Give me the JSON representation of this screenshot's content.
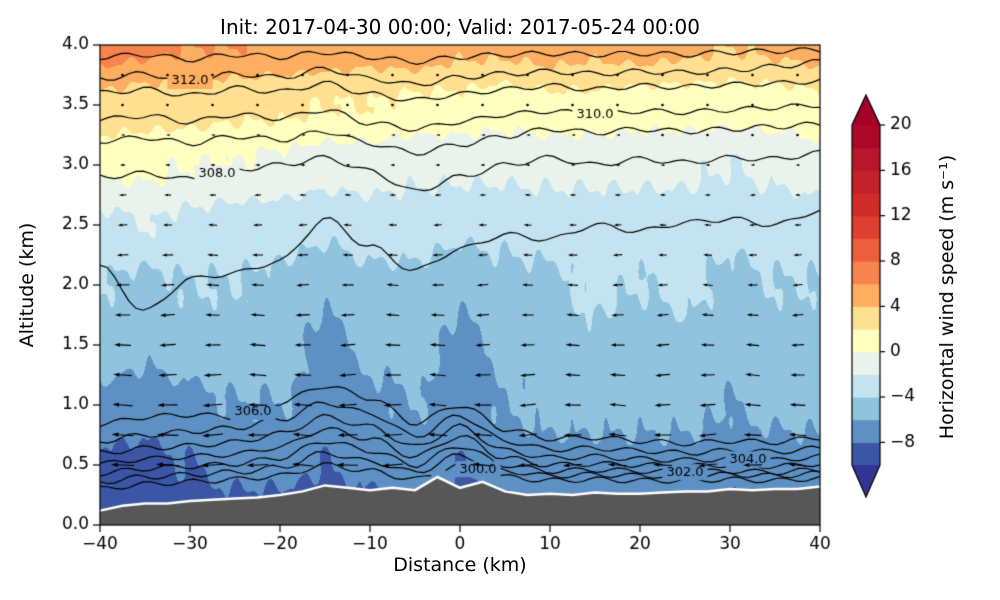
{
  "chart_data": {
    "type": "heatmap",
    "subtype": "filled_contour_cross_section_with_quiver",
    "title": "Init: 2017-04-30 00:00; Valid: 2017-05-24 00:00",
    "xlabel": "Distance (km)",
    "ylabel": "Altitude (km)",
    "xlim": [
      -40,
      40
    ],
    "ylim": [
      0.0,
      4.0
    ],
    "xticks": [
      -40,
      -30,
      -20,
      -10,
      0,
      10,
      20,
      30,
      40
    ],
    "yticks": [
      0.0,
      0.5,
      1.0,
      1.5,
      2.0,
      2.5,
      3.0,
      3.5,
      4.0
    ],
    "grid": false,
    "colorbar": {
      "label": "Horizontal wind speed (m s⁻¹)",
      "ticks": [
        -8,
        -4,
        0,
        4,
        8,
        12,
        16,
        20
      ],
      "vmin": -10,
      "vmax": 20,
      "band_step": 2,
      "extend": "both",
      "stops": [
        [
          -10,
          "#313695"
        ],
        [
          -8,
          "#4575b4"
        ],
        [
          -6,
          "#74add1"
        ],
        [
          -4,
          "#abd9e9"
        ],
        [
          -2,
          "#d9edf5"
        ],
        [
          0,
          "#f8f9e2"
        ],
        [
          1,
          "#ffffbf"
        ],
        [
          3,
          "#fee090"
        ],
        [
          5,
          "#fdae61"
        ],
        [
          8,
          "#f46d43"
        ],
        [
          12,
          "#d73027"
        ],
        [
          16,
          "#bf1c2c"
        ],
        [
          20,
          "#a50026"
        ]
      ]
    },
    "wind_speed_field": {
      "x": [
        -40,
        -35,
        -30,
        -25,
        -20,
        -15,
        -10,
        -5,
        0,
        5,
        10,
        15,
        20,
        25,
        30,
        35,
        40
      ],
      "y": [
        0.0,
        0.5,
        1.0,
        1.5,
        2.0,
        2.5,
        3.0,
        3.5,
        4.0
      ],
      "values": [
        [
          -9.5,
          -9.5,
          -9.0,
          -9.0,
          -9.0,
          -9.5,
          -9.0,
          -9.0,
          -9.5,
          -9.0,
          -8.5,
          -8.5,
          -8.5,
          -8.5,
          -9.0,
          -8.5,
          -8.5
        ],
        [
          -8.5,
          -8.5,
          -8.0,
          -7.5,
          -7.5,
          -8.0,
          -7.5,
          -7.0,
          -8.0,
          -7.0,
          -6.5,
          -6.5,
          -6.5,
          -6.5,
          -7.0,
          -7.0,
          -6.5
        ],
        [
          -6.5,
          -7.0,
          -6.5,
          -6.0,
          -6.0,
          -7.0,
          -6.5,
          -6.0,
          -7.0,
          -6.0,
          -5.5,
          -5.5,
          -5.5,
          -5.5,
          -6.0,
          -5.5,
          -5.5
        ],
        [
          -5.0,
          -5.5,
          -5.0,
          -5.0,
          -5.0,
          -6.5,
          -5.5,
          -5.0,
          -6.5,
          -5.5,
          -5.0,
          -4.5,
          -5.0,
          -4.5,
          -5.0,
          -5.0,
          -5.0
        ],
        [
          -4.0,
          -4.5,
          -4.0,
          -4.0,
          -4.5,
          -5.5,
          -4.5,
          -4.5,
          -5.5,
          -4.5,
          -4.5,
          -3.5,
          -4.0,
          -3.5,
          -4.5,
          -4.0,
          -4.0
        ],
        [
          -2.5,
          -2.0,
          -2.5,
          -3.0,
          -3.0,
          -3.5,
          -3.0,
          -3.0,
          -3.5,
          -3.5,
          -3.0,
          -3.0,
          -3.0,
          -3.0,
          -3.5,
          -3.0,
          -3.0
        ],
        [
          0.5,
          0.5,
          0.0,
          0.0,
          -0.5,
          -1.0,
          -1.0,
          -1.5,
          -1.5,
          -1.5,
          -1.5,
          -1.5,
          -1.5,
          -1.5,
          -2.0,
          -1.5,
          -1.0
        ],
        [
          3.5,
          3.0,
          3.0,
          2.5,
          2.5,
          2.0,
          2.0,
          1.5,
          1.5,
          1.0,
          1.5,
          1.5,
          1.0,
          1.0,
          1.0,
          1.0,
          1.5
        ],
        [
          7.0,
          6.5,
          6.0,
          6.0,
          5.5,
          5.5,
          5.0,
          5.5,
          4.5,
          4.5,
          5.0,
          4.5,
          5.0,
          4.5,
          4.0,
          4.5,
          5.0
        ]
      ]
    },
    "quiver_u": {
      "x": [
        -40,
        -35,
        -30,
        -25,
        -20,
        -15,
        -10,
        -5,
        0,
        5,
        10,
        15,
        20,
        25,
        30,
        35,
        40
      ],
      "y": [
        0.0,
        0.5,
        1.0,
        1.5,
        2.0,
        2.5,
        3.0,
        3.5,
        4.0
      ],
      "values": [
        [
          -8.0,
          -8.2,
          -8.0,
          -7.8,
          -8.0,
          -8.2,
          -8.0,
          -7.8,
          -8.0,
          -7.8,
          -7.6,
          -7.8,
          -7.6,
          -7.5,
          -7.6,
          -7.5,
          -7.4
        ],
        [
          -7.5,
          -7.6,
          -7.4,
          -7.2,
          -7.0,
          -6.8,
          -7.0,
          -6.6,
          -6.8,
          -6.4,
          -6.2,
          -6.4,
          -6.2,
          -6.0,
          -6.2,
          -6.0,
          -6.0
        ],
        [
          -6.5,
          -6.6,
          -6.4,
          -6.2,
          -6.0,
          -5.8,
          -6.0,
          -5.6,
          -5.8,
          -5.4,
          -5.2,
          -5.4,
          -5.2,
          -5.0,
          -5.2,
          -5.0,
          -5.0
        ],
        [
          -5.5,
          -5.4,
          -5.2,
          -5.0,
          -5.2,
          -5.0,
          -4.8,
          -5.0,
          -4.8,
          -4.6,
          -4.4,
          -4.6,
          -4.4,
          -4.2,
          -4.4,
          -4.2,
          -4.2
        ],
        [
          -4.5,
          -4.4,
          -4.2,
          -4.0,
          -4.2,
          -4.0,
          -3.8,
          -4.0,
          -3.8,
          -3.6,
          -3.4,
          -3.6,
          -3.4,
          -3.2,
          -3.4,
          -3.2,
          -3.2
        ],
        [
          -3.2,
          -3.0,
          -3.0,
          -2.8,
          -3.0,
          -2.8,
          -2.6,
          -2.8,
          -2.6,
          -2.6,
          -2.4,
          -2.6,
          -2.4,
          -2.2,
          -2.4,
          -2.2,
          -2.2
        ],
        [
          -1.8,
          -1.6,
          -1.6,
          -1.5,
          -1.6,
          -1.5,
          -1.4,
          -1.5,
          -1.4,
          -1.4,
          -1.3,
          -1.4,
          -1.3,
          -1.2,
          -1.3,
          -1.2,
          -1.2
        ],
        [
          -0.6,
          -0.5,
          -0.5,
          -0.5,
          -0.5,
          -0.4,
          -0.4,
          -0.5,
          -0.4,
          -0.4,
          -0.3,
          -0.4,
          -0.3,
          -0.3,
          -0.3,
          -0.3,
          -0.3
        ],
        [
          -0.2,
          -0.2,
          -0.1,
          -0.2,
          -0.1,
          -0.1,
          -0.1,
          -0.2,
          -0.1,
          -0.1,
          -0.1,
          -0.1,
          -0.1,
          -0.1,
          -0.1,
          -0.1,
          -0.1
        ]
      ]
    },
    "theta_contours": {
      "x": [
        -40,
        -35,
        -30,
        -25,
        -20,
        -15,
        -10,
        -5,
        0,
        5,
        10,
        15,
        20,
        25,
        30,
        35,
        40
      ],
      "label_format": "###.0",
      "lines": [
        {
          "level": 300.0,
          "labeled": true,
          "label_x": 2,
          "y": [
            0.3,
            0.34,
            0.36,
            0.38,
            0.41,
            0.5,
            0.45,
            0.38,
            0.5,
            0.4,
            0.37,
            0.38,
            0.37,
            0.37,
            0.38,
            0.37,
            0.39
          ]
        },
        {
          "level": 301.0,
          "labeled": false,
          "label_x": 0,
          "y": [
            0.36,
            0.4,
            0.42,
            0.44,
            0.48,
            0.6,
            0.53,
            0.44,
            0.58,
            0.45,
            0.41,
            0.42,
            0.41,
            0.41,
            0.42,
            0.41,
            0.43
          ]
        },
        {
          "level": 302.0,
          "labeled": true,
          "label_x": 25,
          "y": [
            0.43,
            0.47,
            0.49,
            0.51,
            0.56,
            0.7,
            0.62,
            0.5,
            0.66,
            0.5,
            0.45,
            0.46,
            0.45,
            0.44,
            0.45,
            0.44,
            0.46
          ]
        },
        {
          "level": 303.0,
          "labeled": false,
          "label_x": 0,
          "y": [
            0.51,
            0.55,
            0.57,
            0.59,
            0.65,
            0.8,
            0.72,
            0.57,
            0.74,
            0.56,
            0.5,
            0.51,
            0.5,
            0.49,
            0.5,
            0.49,
            0.51
          ]
        },
        {
          "level": 304.0,
          "labeled": true,
          "label_x": 32,
          "y": [
            0.6,
            0.64,
            0.66,
            0.69,
            0.76,
            0.9,
            0.82,
            0.65,
            0.82,
            0.62,
            0.56,
            0.57,
            0.55,
            0.54,
            0.55,
            0.54,
            0.57
          ]
        },
        {
          "level": 305.0,
          "labeled": false,
          "label_x": 0,
          "y": [
            0.7,
            0.75,
            0.78,
            0.81,
            0.88,
            1.02,
            0.93,
            0.74,
            0.91,
            0.7,
            0.63,
            0.64,
            0.62,
            0.6,
            0.62,
            0.61,
            0.64
          ]
        },
        {
          "level": 306.0,
          "labeled": true,
          "label_x": -23,
          "y": [
            0.84,
            0.9,
            0.92,
            0.9,
            1.02,
            1.16,
            1.06,
            0.85,
            1.0,
            0.8,
            0.72,
            0.73,
            0.7,
            0.68,
            0.7,
            0.69,
            0.73
          ]
        },
        {
          "level": 307.0,
          "labeled": false,
          "label_x": 0,
          "y": [
            2.15,
            1.78,
            2.05,
            2.1,
            2.2,
            2.55,
            2.32,
            2.12,
            2.3,
            2.42,
            2.38,
            2.5,
            2.45,
            2.52,
            2.55,
            2.5,
            2.62
          ]
        },
        {
          "level": 308.0,
          "labeled": true,
          "label_x": -27,
          "y": [
            2.9,
            2.93,
            2.88,
            2.96,
            3.0,
            3.06,
            2.95,
            2.78,
            2.9,
            3.0,
            3.06,
            3.0,
            3.05,
            3.02,
            3.06,
            3.05,
            3.1
          ]
        },
        {
          "level": 309.0,
          "labeled": false,
          "label_x": 0,
          "y": [
            3.2,
            3.23,
            3.18,
            3.24,
            3.21,
            3.28,
            3.18,
            3.1,
            3.17,
            3.24,
            3.3,
            3.27,
            3.3,
            3.28,
            3.3,
            3.32,
            3.34
          ]
        },
        {
          "level": 310.0,
          "labeled": true,
          "label_x": 15,
          "y": [
            3.38,
            3.41,
            3.36,
            3.42,
            3.39,
            3.46,
            3.35,
            3.3,
            3.36,
            3.42,
            3.45,
            3.42,
            3.45,
            3.44,
            3.46,
            3.48,
            3.5
          ]
        },
        {
          "level": 311.0,
          "labeled": false,
          "label_x": 0,
          "y": [
            3.6,
            3.63,
            3.58,
            3.64,
            3.61,
            3.68,
            3.59,
            3.54,
            3.59,
            3.63,
            3.66,
            3.63,
            3.66,
            3.65,
            3.67,
            3.68,
            3.7
          ]
        },
        {
          "level": 312.0,
          "labeled": true,
          "label_x": -30,
          "y": [
            3.72,
            3.76,
            3.7,
            3.76,
            3.73,
            3.8,
            3.72,
            3.67,
            3.73,
            3.76,
            3.78,
            3.76,
            3.78,
            3.77,
            3.79,
            3.82,
            3.86
          ]
        },
        {
          "level": 313.0,
          "labeled": false,
          "label_x": 0,
          "y": [
            3.9,
            3.92,
            3.88,
            3.92,
            3.9,
            3.94,
            3.9,
            3.86,
            3.9,
            3.92,
            3.93,
            3.92,
            3.93,
            3.92,
            3.94,
            3.95,
            3.96
          ]
        }
      ]
    },
    "terrain": {
      "color": "#575757",
      "outline_color": "#ffffff",
      "x": [
        -40,
        -37.5,
        -35,
        -32.5,
        -30,
        -27.5,
        -25,
        -22.5,
        -20,
        -17.5,
        -15,
        -12.5,
        -10,
        -7.5,
        -5,
        -2.5,
        0,
        2.5,
        5,
        7.5,
        10,
        12.5,
        15,
        17.5,
        20,
        22.5,
        25,
        27.5,
        30,
        32.5,
        35,
        37.5,
        40
      ],
      "h": [
        0.12,
        0.16,
        0.18,
        0.18,
        0.2,
        0.21,
        0.22,
        0.23,
        0.25,
        0.28,
        0.33,
        0.31,
        0.29,
        0.31,
        0.29,
        0.4,
        0.31,
        0.36,
        0.28,
        0.25,
        0.26,
        0.25,
        0.27,
        0.26,
        0.26,
        0.27,
        0.28,
        0.28,
        0.3,
        0.29,
        0.3,
        0.3,
        0.32
      ]
    },
    "quiver_layout": {
      "x_start": -37.5,
      "x_step": 5,
      "y_start": 0.5,
      "y_step": 0.25,
      "rows": 14,
      "cols": 16,
      "arrow_color": "#000000"
    }
  }
}
